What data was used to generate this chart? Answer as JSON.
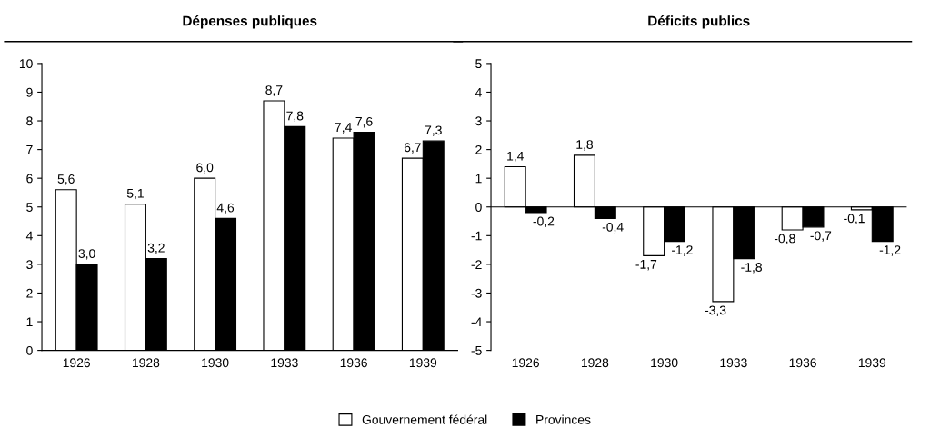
{
  "chart_data": [
    {
      "type": "bar",
      "title": "Dépenses publiques",
      "categories": [
        "1926",
        "1928",
        "1930",
        "1933",
        "1936",
        "1939"
      ],
      "series": [
        {
          "name": "Gouvernement fédéral",
          "color": "#ffffff",
          "values": [
            5.6,
            5.1,
            6.0,
            8.7,
            7.4,
            6.7
          ],
          "value_labels": [
            "5,6",
            "5,1",
            "6,0",
            "8,7",
            "7,4",
            "6,7"
          ]
        },
        {
          "name": "Provinces",
          "color": "#000000",
          "values": [
            3.0,
            3.2,
            4.6,
            7.8,
            7.6,
            7.3
          ],
          "value_labels": [
            "3,0",
            "3,2",
            "4,6",
            "7,8",
            "7,6",
            "7,3"
          ]
        }
      ],
      "ylim": [
        0,
        10
      ],
      "yticks": [
        0,
        1,
        2,
        3,
        4,
        5,
        6,
        7,
        8,
        9,
        10
      ],
      "grid": false,
      "legend": "bottom"
    },
    {
      "type": "bar",
      "title": "Déficits publics",
      "categories": [
        "1926",
        "1928",
        "1930",
        "1933",
        "1936",
        "1939"
      ],
      "series": [
        {
          "color": "#ffffff",
          "values": [
            1.4,
            1.8,
            -1.7,
            -3.3,
            -0.8,
            -0.1
          ],
          "value_labels": [
            "1,4",
            "1,8",
            "-1,7",
            "-3,3",
            "-0,8",
            "-0,1"
          ]
        },
        {
          "color": "#000000",
          "values": [
            -0.2,
            -0.4,
            -1.2,
            -1.8,
            -0.7,
            -1.2
          ],
          "value_labels": [
            "-0,2",
            "-0,4",
            "-1,2",
            "-1,8",
            "-0,7",
            "-1,2"
          ]
        }
      ],
      "ref_lines": [
        {
          "axis": "y",
          "value": 0,
          "color": "#000000"
        }
      ],
      "ylim": [
        -5,
        5
      ],
      "yticks": [
        {
          "value": -5,
          "label": "-5"
        },
        {
          "value": -4,
          "label": "-4"
        },
        {
          "value": -3,
          "label": "-3"
        },
        {
          "value": -2,
          "label": "-2"
        },
        {
          "value": -1,
          "label": "-1"
        },
        0,
        1,
        2,
        3,
        4,
        5
      ],
      "grid": false
    }
  ]
}
